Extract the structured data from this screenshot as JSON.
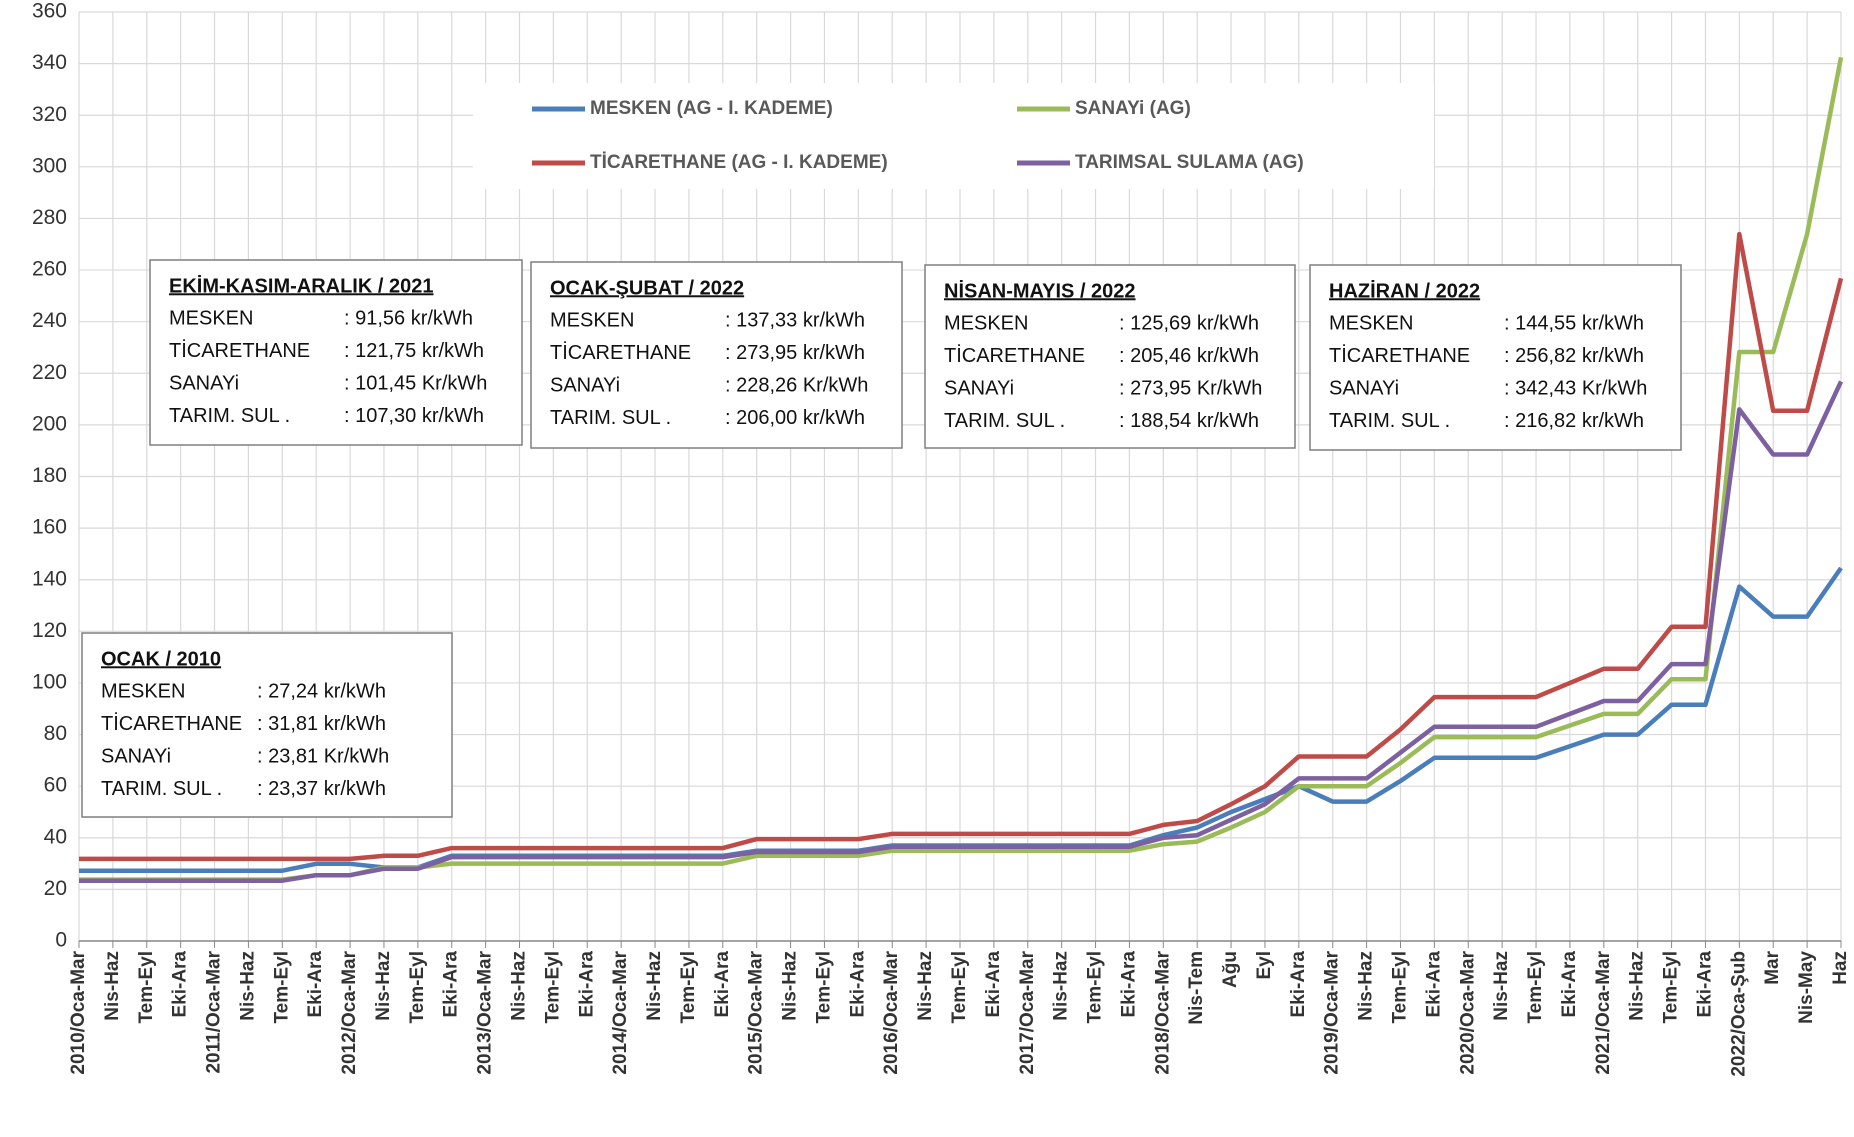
{
  "chart_data": {
    "type": "line",
    "categories": [
      "2010/Oca-Mar",
      "Nis-Haz",
      "Tem-Eyl",
      "Eki-Ara",
      "2011/Oca-Mar",
      "Nis-Haz",
      "Tem-Eyl",
      "Eki-Ara",
      "2012/Oca-Mar",
      "Nis-Haz",
      "Tem-Eyl",
      "Eki-Ara",
      "2013/Oca-Mar",
      "Nis-Haz",
      "Tem-Eyl",
      "Eki-Ara",
      "2014/Oca-Mar",
      "Nis-Haz",
      "Tem-Eyl",
      "Eki-Ara",
      "2015/Oca-Mar",
      "Nis-Haz",
      "Tem-Eyl",
      "Eki-Ara",
      "2016/Oca-Mar",
      "Nis-Haz",
      "Tem-Eyl",
      "Eki-Ara",
      "2017/Oca-Mar",
      "Nis-Haz",
      "Tem-Eyl",
      "Eki-Ara",
      "2018/Oca-Mar",
      "Nis-Tem",
      "Ağu",
      "Eyl",
      "Eki-Ara",
      "2019/Oca-Mar",
      "Nis-Haz",
      "Tem-Eyl",
      "Eki-Ara",
      "2020/Oca-Mar",
      "Nis-Haz",
      "Tem-Eyl",
      "Eki-Ara",
      "2021/Oca-Mar",
      "Nis-Haz",
      "Tem-Eyl",
      "Eki-Ara",
      "2022/Oca-Şub",
      "Mar",
      "Nis-May",
      "Haz"
    ],
    "series": [
      {
        "name": "MESKEN (AG - I. KADEME)",
        "color": "#4a7ebb",
        "values": [
          27.24,
          27.24,
          27.24,
          27.24,
          27.24,
          27.24,
          27.24,
          29.9,
          29.9,
          28.5,
          28.5,
          33,
          33,
          33,
          33,
          33,
          33,
          33,
          33,
          33,
          35,
          35,
          35,
          35,
          37,
          37,
          37,
          37,
          37,
          37,
          37,
          37,
          41,
          44,
          50,
          55,
          60,
          54,
          54,
          62,
          71,
          71,
          71,
          71,
          75.5,
          80,
          80,
          91.56,
          91.56,
          137.33,
          125.69,
          125.69,
          144.55
        ]
      },
      {
        "name": "SANAYi (AG)",
        "color": "#9bbb59",
        "values": [
          23.81,
          23.81,
          23.81,
          23.81,
          23.81,
          23.81,
          23.81,
          25.5,
          25.5,
          28.5,
          28.5,
          30,
          30,
          30,
          30,
          30,
          30,
          30,
          30,
          30,
          33,
          33,
          33,
          33,
          35,
          35,
          35,
          35,
          35,
          35,
          35,
          35,
          37.5,
          38.5,
          44,
          50,
          60,
          60,
          60,
          69,
          79,
          79,
          79,
          79,
          83.5,
          88,
          88,
          101.45,
          101.45,
          228.26,
          228.26,
          273.95,
          342.43
        ]
      },
      {
        "name": "TİCARETHANE (AG - I. KADEME)",
        "color": "#be4b48",
        "values": [
          31.81,
          31.81,
          31.81,
          31.81,
          31.81,
          31.81,
          31.81,
          31.81,
          31.81,
          33,
          33,
          36,
          36,
          36,
          36,
          36,
          36,
          36,
          36,
          36,
          39.5,
          39.5,
          39.5,
          39.5,
          41.5,
          41.5,
          41.5,
          41.5,
          41.5,
          41.5,
          41.5,
          41.5,
          45,
          46.5,
          53,
          60,
          71.5,
          71.5,
          71.5,
          82,
          94.5,
          94.5,
          94.5,
          94.5,
          100,
          105.5,
          105.5,
          121.75,
          121.75,
          273.95,
          205.46,
          205.46,
          256.82
        ]
      },
      {
        "name": "TARIMSAL SULAMA (AG)",
        "color": "#7d60a0",
        "values": [
          23.37,
          23.37,
          23.37,
          23.37,
          23.37,
          23.37,
          23.37,
          25.5,
          25.5,
          28,
          28,
          32.5,
          32.5,
          32.5,
          32.5,
          32.5,
          32.5,
          32.5,
          32.5,
          32.5,
          34.5,
          34.5,
          34.5,
          34.5,
          36.5,
          36.5,
          36.5,
          36.5,
          36.5,
          36.5,
          36.5,
          36.5,
          40,
          41,
          47,
          53,
          63,
          63,
          63,
          73,
          83,
          83,
          83,
          83,
          88,
          93,
          93,
          107.3,
          107.3,
          206,
          188.54,
          188.54,
          216.82
        ]
      }
    ],
    "ylim": [
      0,
      360
    ],
    "yticks": [
      0,
      20,
      40,
      60,
      80,
      100,
      120,
      140,
      160,
      180,
      200,
      220,
      240,
      260,
      280,
      300,
      320,
      340,
      360
    ],
    "grid": true,
    "annotations": [
      {
        "title": "EKİM-KASIM-ARALIK / 2021",
        "rows": [
          {
            "label": "MESKEN",
            "value": ":  91,56 kr/kWh"
          },
          {
            "label": "TİCARETHANE",
            "value": ": 121,75 kr/kWh"
          },
          {
            "label": "SANAYi",
            "value": ": 101,45 Kr/kWh"
          },
          {
            "label": "TARIM. SUL .",
            "value": ": 107,30 kr/kWh"
          }
        ]
      },
      {
        "title": "OCAK-ŞUBAT / 2022",
        "rows": [
          {
            "label": "MESKEN",
            "value": ": 137,33 kr/kWh"
          },
          {
            "label": "TİCARETHANE",
            "value": ": 273,95 kr/kWh"
          },
          {
            "label": "SANAYi",
            "value": ": 228,26 Kr/kWh"
          },
          {
            "label": "TARIM. SUL .",
            "value": ": 206,00 kr/kWh"
          }
        ]
      },
      {
        "title": "NİSAN-MAYIS / 2022",
        "rows": [
          {
            "label": "MESKEN",
            "value": ": 125,69 kr/kWh"
          },
          {
            "label": "TİCARETHANE",
            "value": ": 205,46 kr/kWh"
          },
          {
            "label": "SANAYi",
            "value": ": 273,95 Kr/kWh"
          },
          {
            "label": "TARIM. SUL .",
            "value": ": 188,54 kr/kWh"
          }
        ]
      },
      {
        "title": "HAZİRAN / 2022",
        "rows": [
          {
            "label": "MESKEN",
            "value": ": 144,55 kr/kWh"
          },
          {
            "label": "TİCARETHANE",
            "value": ": 256,82 kr/kWh"
          },
          {
            "label": "SANAYi",
            "value": ": 342,43 Kr/kWh"
          },
          {
            "label": "TARIM. SUL .",
            "value": ": 216,82 kr/kWh"
          }
        ]
      },
      {
        "title": "OCAK / 2010",
        "rows": [
          {
            "label": "MESKEN",
            "value": ": 27,24 kr/kWh"
          },
          {
            "label": "TİCARETHANE",
            "value": ": 31,81 kr/kWh"
          },
          {
            "label": "SANAYi",
            "value": ": 23,81 Kr/kWh"
          },
          {
            "label": "TARIM. SUL .",
            "value": ": 23,37 kr/kWh"
          }
        ]
      }
    ]
  }
}
